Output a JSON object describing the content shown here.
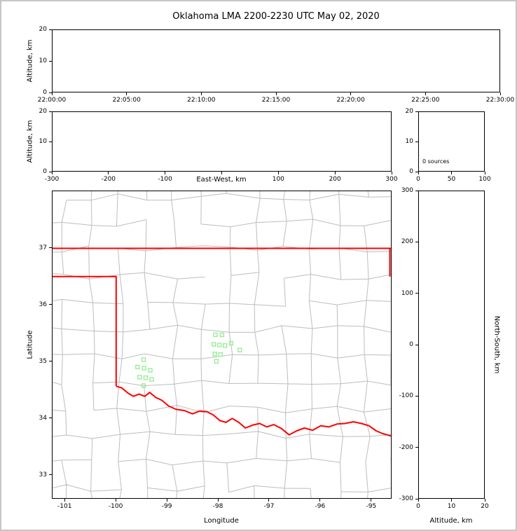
{
  "title": "Oklahoma LMA 2200-2230 UTC May 02, 2020",
  "colors": {
    "state_border": "#ff0000",
    "county_lines": "#bdbdbd",
    "source_marker": "#90ee90",
    "axes": "#000000",
    "figure_border": "#c6c6c6",
    "background": "#ffffff"
  },
  "chart_data": [
    {
      "id": "time-height",
      "type": "scatter",
      "title": "",
      "xlabel": "",
      "ylabel": "Altitude, km",
      "xticks": [
        "22:00:00",
        "22:05:00",
        "22:10:00",
        "22:15:00",
        "22:20:00",
        "22:25:00",
        "22:30:00"
      ],
      "ylim": [
        0,
        20
      ],
      "yticks": [
        0,
        10,
        20
      ],
      "grid": false,
      "points": []
    },
    {
      "id": "east-west-height",
      "type": "scatter",
      "xlabel": "East-West, km",
      "ylabel": "Altitude, km",
      "xlim": [
        -300,
        300
      ],
      "xticks": [
        -300,
        -200,
        -100,
        0,
        100,
        200,
        300
      ],
      "xtick_labels": [
        "-300",
        "-200",
        "-100",
        "",
        "100",
        "200",
        "300"
      ],
      "ylim": [
        0,
        20
      ],
      "yticks": [
        0,
        10,
        20
      ],
      "grid": false,
      "points": []
    },
    {
      "id": "source-histogram",
      "type": "bar",
      "xlabel": "",
      "ylabel": "",
      "xlim": [
        0,
        100
      ],
      "xticks": [
        0,
        50,
        100
      ],
      "ylim": [
        0,
        20
      ],
      "yticks": [
        0,
        10,
        20
      ],
      "annotation": "0 sources",
      "values": []
    },
    {
      "id": "plan-view",
      "type": "scatter",
      "xlabel": "Longitude",
      "ylabel": "Latitude",
      "xlim": [
        -101.25,
        -94.6
      ],
      "ylim": [
        32.58,
        38.01
      ],
      "xticks": [
        -101,
        -100,
        -99,
        -98,
        -97,
        -96,
        -95
      ],
      "yticks": [
        33,
        34,
        35,
        36,
        37
      ],
      "marker": "open-square",
      "points": [
        [
          -98.05,
          35.47
        ],
        [
          -97.92,
          35.47
        ],
        [
          -98.08,
          35.3
        ],
        [
          -97.97,
          35.29
        ],
        [
          -97.86,
          35.28
        ],
        [
          -97.74,
          35.32
        ],
        [
          -98.06,
          35.13
        ],
        [
          -97.95,
          35.12
        ],
        [
          -98.03,
          35.0
        ],
        [
          -97.57,
          35.2
        ],
        [
          -99.46,
          35.03
        ],
        [
          -99.58,
          34.9
        ],
        [
          -99.45,
          34.88
        ],
        [
          -99.33,
          34.84
        ],
        [
          -99.54,
          34.72
        ],
        [
          -99.42,
          34.71
        ],
        [
          -99.3,
          34.68
        ],
        [
          -99.46,
          34.57
        ]
      ],
      "state_boundary": {
        "north_border": [
          [
            -101.25,
            37.0
          ],
          [
            -94.6,
            37.0
          ]
        ],
        "east_border": [
          [
            -94.62,
            37.0
          ],
          [
            -94.62,
            36.5
          ]
        ],
        "panhandle_and_west": [
          [
            -101.25,
            36.5
          ],
          [
            -100.0,
            36.5
          ],
          [
            -100.0,
            34.56
          ]
        ],
        "red_river": [
          [
            -100.0,
            34.56
          ],
          [
            -99.89,
            34.53
          ],
          [
            -99.77,
            34.44
          ],
          [
            -99.66,
            34.38
          ],
          [
            -99.55,
            34.42
          ],
          [
            -99.44,
            34.38
          ],
          [
            -99.34,
            34.45
          ],
          [
            -99.22,
            34.36
          ],
          [
            -99.1,
            34.31
          ],
          [
            -98.97,
            34.21
          ],
          [
            -98.82,
            34.15
          ],
          [
            -98.66,
            34.13
          ],
          [
            -98.5,
            34.07
          ],
          [
            -98.36,
            34.12
          ],
          [
            -98.22,
            34.11
          ],
          [
            -98.09,
            34.05
          ],
          [
            -97.96,
            33.95
          ],
          [
            -97.84,
            33.92
          ],
          [
            -97.72,
            33.99
          ],
          [
            -97.59,
            33.92
          ],
          [
            -97.46,
            33.82
          ],
          [
            -97.32,
            33.87
          ],
          [
            -97.18,
            33.9
          ],
          [
            -97.04,
            33.84
          ],
          [
            -96.9,
            33.88
          ],
          [
            -96.75,
            33.81
          ],
          [
            -96.6,
            33.7
          ],
          [
            -96.45,
            33.77
          ],
          [
            -96.3,
            33.82
          ],
          [
            -96.14,
            33.78
          ],
          [
            -95.98,
            33.86
          ],
          [
            -95.82,
            33.84
          ],
          [
            -95.66,
            33.89
          ],
          [
            -95.5,
            33.9
          ],
          [
            -95.34,
            33.93
          ],
          [
            -95.18,
            33.9
          ],
          [
            -95.03,
            33.86
          ],
          [
            -94.89,
            33.77
          ],
          [
            -94.76,
            33.72
          ],
          [
            -94.6,
            33.68
          ]
        ]
      }
    },
    {
      "id": "north-south-height",
      "type": "scatter",
      "xlabel": "Altitude, km",
      "ylabel": "North-South, km",
      "ylabel_side": "right",
      "xlim": [
        0,
        20
      ],
      "xticks": [
        0,
        10,
        20
      ],
      "ylim": [
        -300,
        300
      ],
      "yticks": [
        300,
        200,
        100,
        0,
        -100,
        -200,
        -300
      ],
      "grid": false,
      "points": []
    }
  ]
}
